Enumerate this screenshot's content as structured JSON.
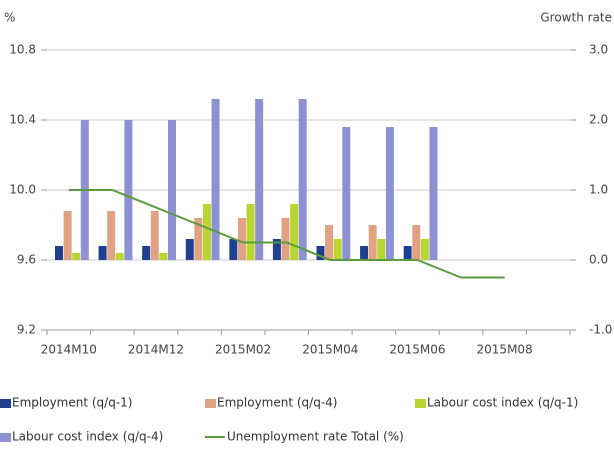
{
  "chart_data": {
    "type": "bar",
    "y_label": "%",
    "y2_label": "Growth rate",
    "categories": [
      "2014M10",
      null,
      "2014M12",
      null,
      "2015M02",
      null,
      "2015M04",
      null,
      "2015M06",
      null,
      "2015M08",
      null
    ],
    "ylim": [
      9.2,
      10.8
    ],
    "yticks": [
      9.2,
      9.6,
      {
        "value": 10,
        "label": "10.0"
      },
      10.4,
      10.8
    ],
    "y2lim": [
      -1,
      3
    ],
    "y2ticks": [
      {
        "value": -1,
        "label": "-1.0"
      },
      {
        "value": 0,
        "label": "0.0"
      },
      {
        "value": 1,
        "label": "1.0"
      },
      {
        "value": 2,
        "label": "2.0"
      },
      {
        "value": 3,
        "label": "3.0"
      }
    ],
    "grid": true,
    "legend": "bottom",
    "series": [
      {
        "name": "Employment (q/q-1)",
        "type": "bar",
        "axis": "y2",
        "color": "#1f3f8f",
        "values": [
          0.2,
          0.2,
          0.2,
          0.3,
          0.3,
          0.3,
          0.2,
          0.2,
          0.2,
          null,
          null,
          null
        ]
      },
      {
        "name": "Employment (q/q-4)",
        "type": "bar",
        "axis": "y2",
        "color": "#e0a283",
        "values": [
          0.7,
          0.7,
          0.7,
          0.6,
          0.6,
          0.6,
          0.5,
          0.5,
          0.5,
          null,
          null,
          null
        ]
      },
      {
        "name": "Labour cost index  (q/q-1)",
        "type": "bar",
        "axis": "y2",
        "color": "#b9d531",
        "values": [
          0.1,
          0.1,
          0.1,
          0.8,
          0.8,
          0.8,
          0.3,
          0.3,
          0.3,
          null,
          null,
          null
        ]
      },
      {
        "name": "Labour cost index  (q/q-4)",
        "type": "bar",
        "axis": "y2",
        "color": "#8d91d2",
        "values": [
          2.0,
          2.0,
          2.0,
          2.3,
          2.3,
          2.3,
          1.9,
          1.9,
          1.9,
          null,
          null,
          null
        ]
      },
      {
        "name": "Unemployment rate Total (%)",
        "type": "line",
        "color": "#5c9a3e",
        "values": [
          10.0,
          10.0,
          9.9,
          9.8,
          9.7,
          9.7,
          9.6,
          9.6,
          9.6,
          9.5,
          9.5,
          null
        ]
      }
    ]
  }
}
